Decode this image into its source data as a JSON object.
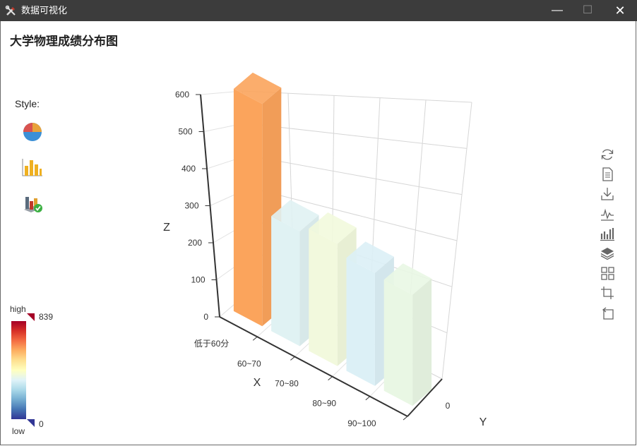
{
  "window": {
    "title": "数据可视化",
    "minimize": "—",
    "maximize": "☐",
    "close": "✕"
  },
  "page": {
    "title": "大学物理成绩分布图"
  },
  "style_panel": {
    "label": "Style:",
    "buttons": [
      {
        "name": "pie-chart",
        "icon": "pie-chart-icon"
      },
      {
        "name": "bar-chart",
        "icon": "bar-chart-icon"
      },
      {
        "name": "bar3d-chart",
        "icon": "bar3d-chart-icon",
        "selected": true
      }
    ]
  },
  "visual_map": {
    "high_label": "high",
    "low_label": "low",
    "max": "839",
    "min": "0",
    "colors": [
      "#a50026",
      "#d73027",
      "#f46d43",
      "#fdae61",
      "#fee090",
      "#ffffbf",
      "#e0f3f8",
      "#abd9e9",
      "#74add1",
      "#4575b4",
      "#313695"
    ]
  },
  "toolbox": {
    "items": [
      {
        "name": "restore",
        "icon": "refresh-icon"
      },
      {
        "name": "data-view",
        "icon": "document-icon"
      },
      {
        "name": "save-image",
        "icon": "download-icon"
      },
      {
        "name": "line-type",
        "icon": "line-chart-icon"
      },
      {
        "name": "bar-type",
        "icon": "bar-chart-icon"
      },
      {
        "name": "stack-type",
        "icon": "layers-icon"
      },
      {
        "name": "tiled-type",
        "icon": "grid-icon"
      },
      {
        "name": "data-zoom",
        "icon": "zoom-area-icon"
      },
      {
        "name": "zoom-back",
        "icon": "zoom-back-icon"
      }
    ]
  },
  "chart_data": {
    "type": "bar",
    "categories": [
      "低于60分",
      "60~70",
      "70~80",
      "80~90",
      "90~100"
    ],
    "values": [
      839,
      310,
      330,
      305,
      300
    ],
    "bar_colors": [
      "#fba45c",
      "#e0f2f3",
      "#f2f9dd",
      "#dcf0f6",
      "#e9f7e4"
    ],
    "xlabel": "X",
    "ylabel": "Y",
    "zlabel": "Z",
    "y_categories": [
      "0"
    ],
    "zticks": [
      "0",
      "100",
      "200",
      "300",
      "400",
      "500",
      "600"
    ],
    "zlim": [
      0,
      600
    ],
    "grid": true
  }
}
